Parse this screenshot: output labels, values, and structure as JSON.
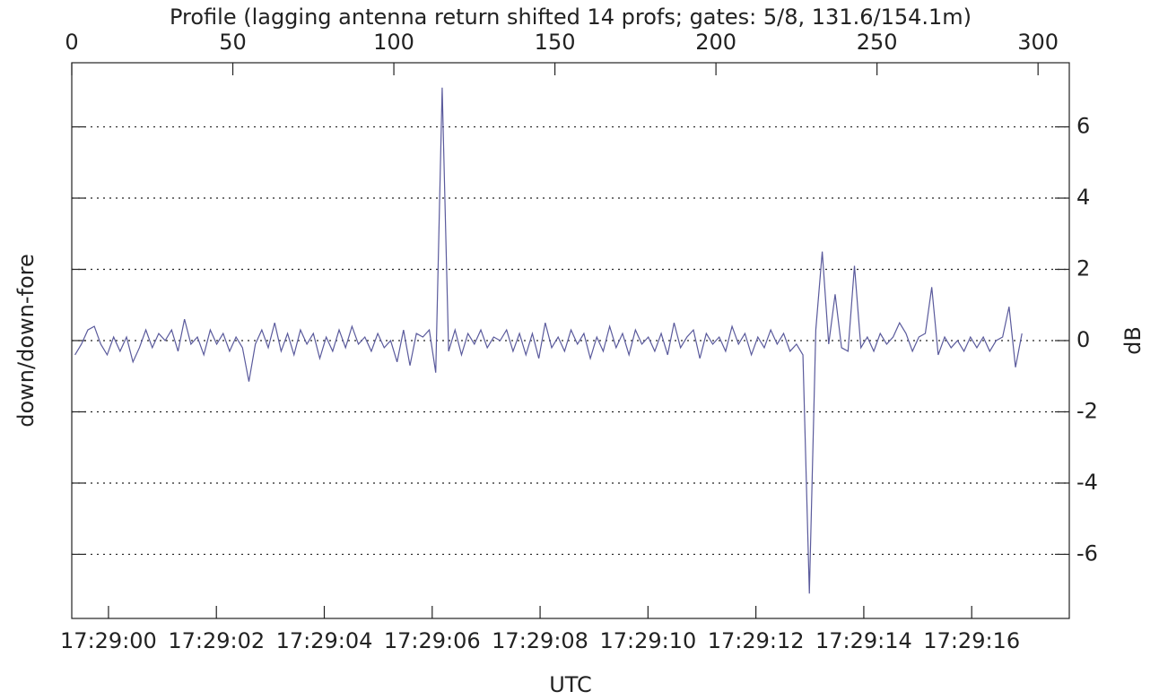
{
  "chart_data": {
    "type": "line",
    "title": "Profile (lagging antenna return shifted 14 profs; gates: 5/8, 131.6/154.1m)",
    "xlabel": "UTC",
    "ylabel": "down/down-fore",
    "y2label": "dB",
    "xlim": [
      0,
      309.7
    ],
    "xticks": [
      0,
      50,
      100,
      150,
      200,
      250,
      300
    ],
    "x2ticks": [
      {
        "value": 11.4,
        "label": "17:29:00"
      },
      {
        "value": 44.9,
        "label": "17:29:02"
      },
      {
        "value": 78.4,
        "label": "17:29:04"
      },
      {
        "value": 111.9,
        "label": "17:29:06"
      },
      {
        "value": 145.4,
        "label": "17:29:08"
      },
      {
        "value": 178.9,
        "label": "17:29:10"
      },
      {
        "value": 212.4,
        "label": "17:29:12"
      },
      {
        "value": 245.9,
        "label": "17:29:14"
      },
      {
        "value": 279.4,
        "label": "17:29:16"
      }
    ],
    "ylim": [
      -7.8,
      7.8
    ],
    "yticks": [
      -6,
      -4,
      -2,
      0,
      2,
      4,
      6
    ],
    "grid": true,
    "series": [
      {
        "color": "#5a5a9c",
        "x": [
          1,
          3,
          5,
          7,
          9,
          11,
          13,
          15,
          17,
          19,
          21,
          23,
          25,
          27,
          29,
          31,
          33,
          35,
          37,
          39,
          41,
          43,
          45,
          47,
          49,
          51,
          53,
          55,
          57,
          59,
          61,
          63,
          65,
          67,
          69,
          71,
          73,
          75,
          77,
          79,
          81,
          83,
          85,
          87,
          89,
          91,
          93,
          95,
          97,
          99,
          101,
          103,
          105,
          107,
          109,
          111,
          113,
          115,
          117,
          119,
          121,
          123,
          125,
          127,
          129,
          131,
          133,
          135,
          137,
          139,
          141,
          143,
          145,
          147,
          149,
          151,
          153,
          155,
          157,
          159,
          161,
          163,
          165,
          167,
          169,
          171,
          173,
          175,
          177,
          179,
          181,
          183,
          185,
          187,
          189,
          191,
          193,
          195,
          197,
          199,
          201,
          203,
          205,
          207,
          209,
          211,
          213,
          215,
          217,
          219,
          221,
          223,
          225,
          227,
          229,
          231,
          233,
          235,
          237,
          239,
          241,
          243,
          245,
          247,
          249,
          251,
          253,
          255,
          257,
          259,
          261,
          263,
          265,
          267,
          269,
          271,
          273,
          275,
          277,
          279,
          281,
          283,
          285,
          287,
          289,
          291,
          293,
          295
        ],
        "values": [
          -0.4,
          -0.1,
          0.3,
          0.4,
          -0.1,
          -0.4,
          0.1,
          -0.3,
          0.1,
          -0.6,
          -0.2,
          0.3,
          -0.2,
          0.2,
          0.0,
          0.3,
          -0.3,
          0.6,
          -0.1,
          0.1,
          -0.4,
          0.3,
          -0.1,
          0.2,
          -0.3,
          0.1,
          -0.2,
          -1.15,
          -0.1,
          0.3,
          -0.2,
          0.5,
          -0.3,
          0.2,
          -0.4,
          0.3,
          -0.1,
          0.2,
          -0.5,
          0.1,
          -0.3,
          0.3,
          -0.2,
          0.4,
          -0.1,
          0.1,
          -0.3,
          0.2,
          -0.2,
          0.0,
          -0.6,
          0.3,
          -0.7,
          0.2,
          0.1,
          0.3,
          -0.9,
          7.1,
          -0.3,
          0.3,
          -0.4,
          0.2,
          -0.1,
          0.3,
          -0.2,
          0.1,
          0.0,
          0.3,
          -0.3,
          0.2,
          -0.4,
          0.2,
          -0.5,
          0.5,
          -0.2,
          0.1,
          -0.3,
          0.3,
          -0.1,
          0.2,
          -0.5,
          0.1,
          -0.3,
          0.4,
          -0.2,
          0.2,
          -0.4,
          0.3,
          -0.1,
          0.1,
          -0.3,
          0.2,
          -0.4,
          0.5,
          -0.2,
          0.1,
          0.3,
          -0.5,
          0.2,
          -0.1,
          0.1,
          -0.3,
          0.4,
          -0.1,
          0.2,
          -0.4,
          0.1,
          -0.2,
          0.3,
          -0.1,
          0.2,
          -0.3,
          -0.1,
          -0.4,
          -7.1,
          0.3,
          2.5,
          -0.1,
          1.3,
          -0.2,
          -0.3,
          2.1,
          -0.2,
          0.1,
          -0.3,
          0.2,
          -0.1,
          0.1,
          0.5,
          0.2,
          -0.3,
          0.1,
          0.2,
          1.5,
          -0.4,
          0.1,
          -0.2,
          0.0,
          -0.3,
          0.1,
          -0.2,
          0.1,
          -0.3,
          0.0,
          0.1,
          0.95,
          -0.75,
          0.2
        ]
      }
    ]
  }
}
